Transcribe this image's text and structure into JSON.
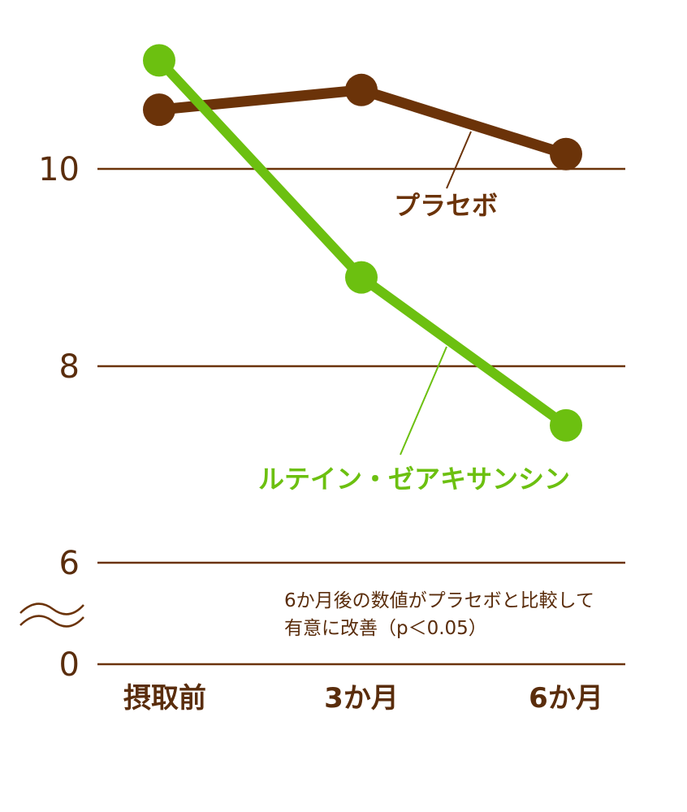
{
  "chart_data": {
    "type": "line",
    "categories": [
      "摂取前",
      "3か月",
      "6か月"
    ],
    "y_ticks": [
      "10",
      "8",
      "6",
      "0"
    ],
    "axis_break": true,
    "grid": true,
    "series": [
      {
        "name": "プラセボ",
        "values": [
          10.6,
          10.8,
          10.15
        ],
        "color": "#6b3309"
      },
      {
        "name": "ルテイン・ゼアキサンシン",
        "values": [
          11.1,
          8.9,
          7.4
        ],
        "color": "#6cc010"
      }
    ],
    "annotation": [
      "6か月後の数値がプラセボと比較して",
      "有意に改善（p＜0.05）"
    ]
  },
  "colors": {
    "grid": "#6b3309",
    "text": "#5a2d0c",
    "placebo": "#6b3309",
    "lutein": "#6cc010"
  }
}
